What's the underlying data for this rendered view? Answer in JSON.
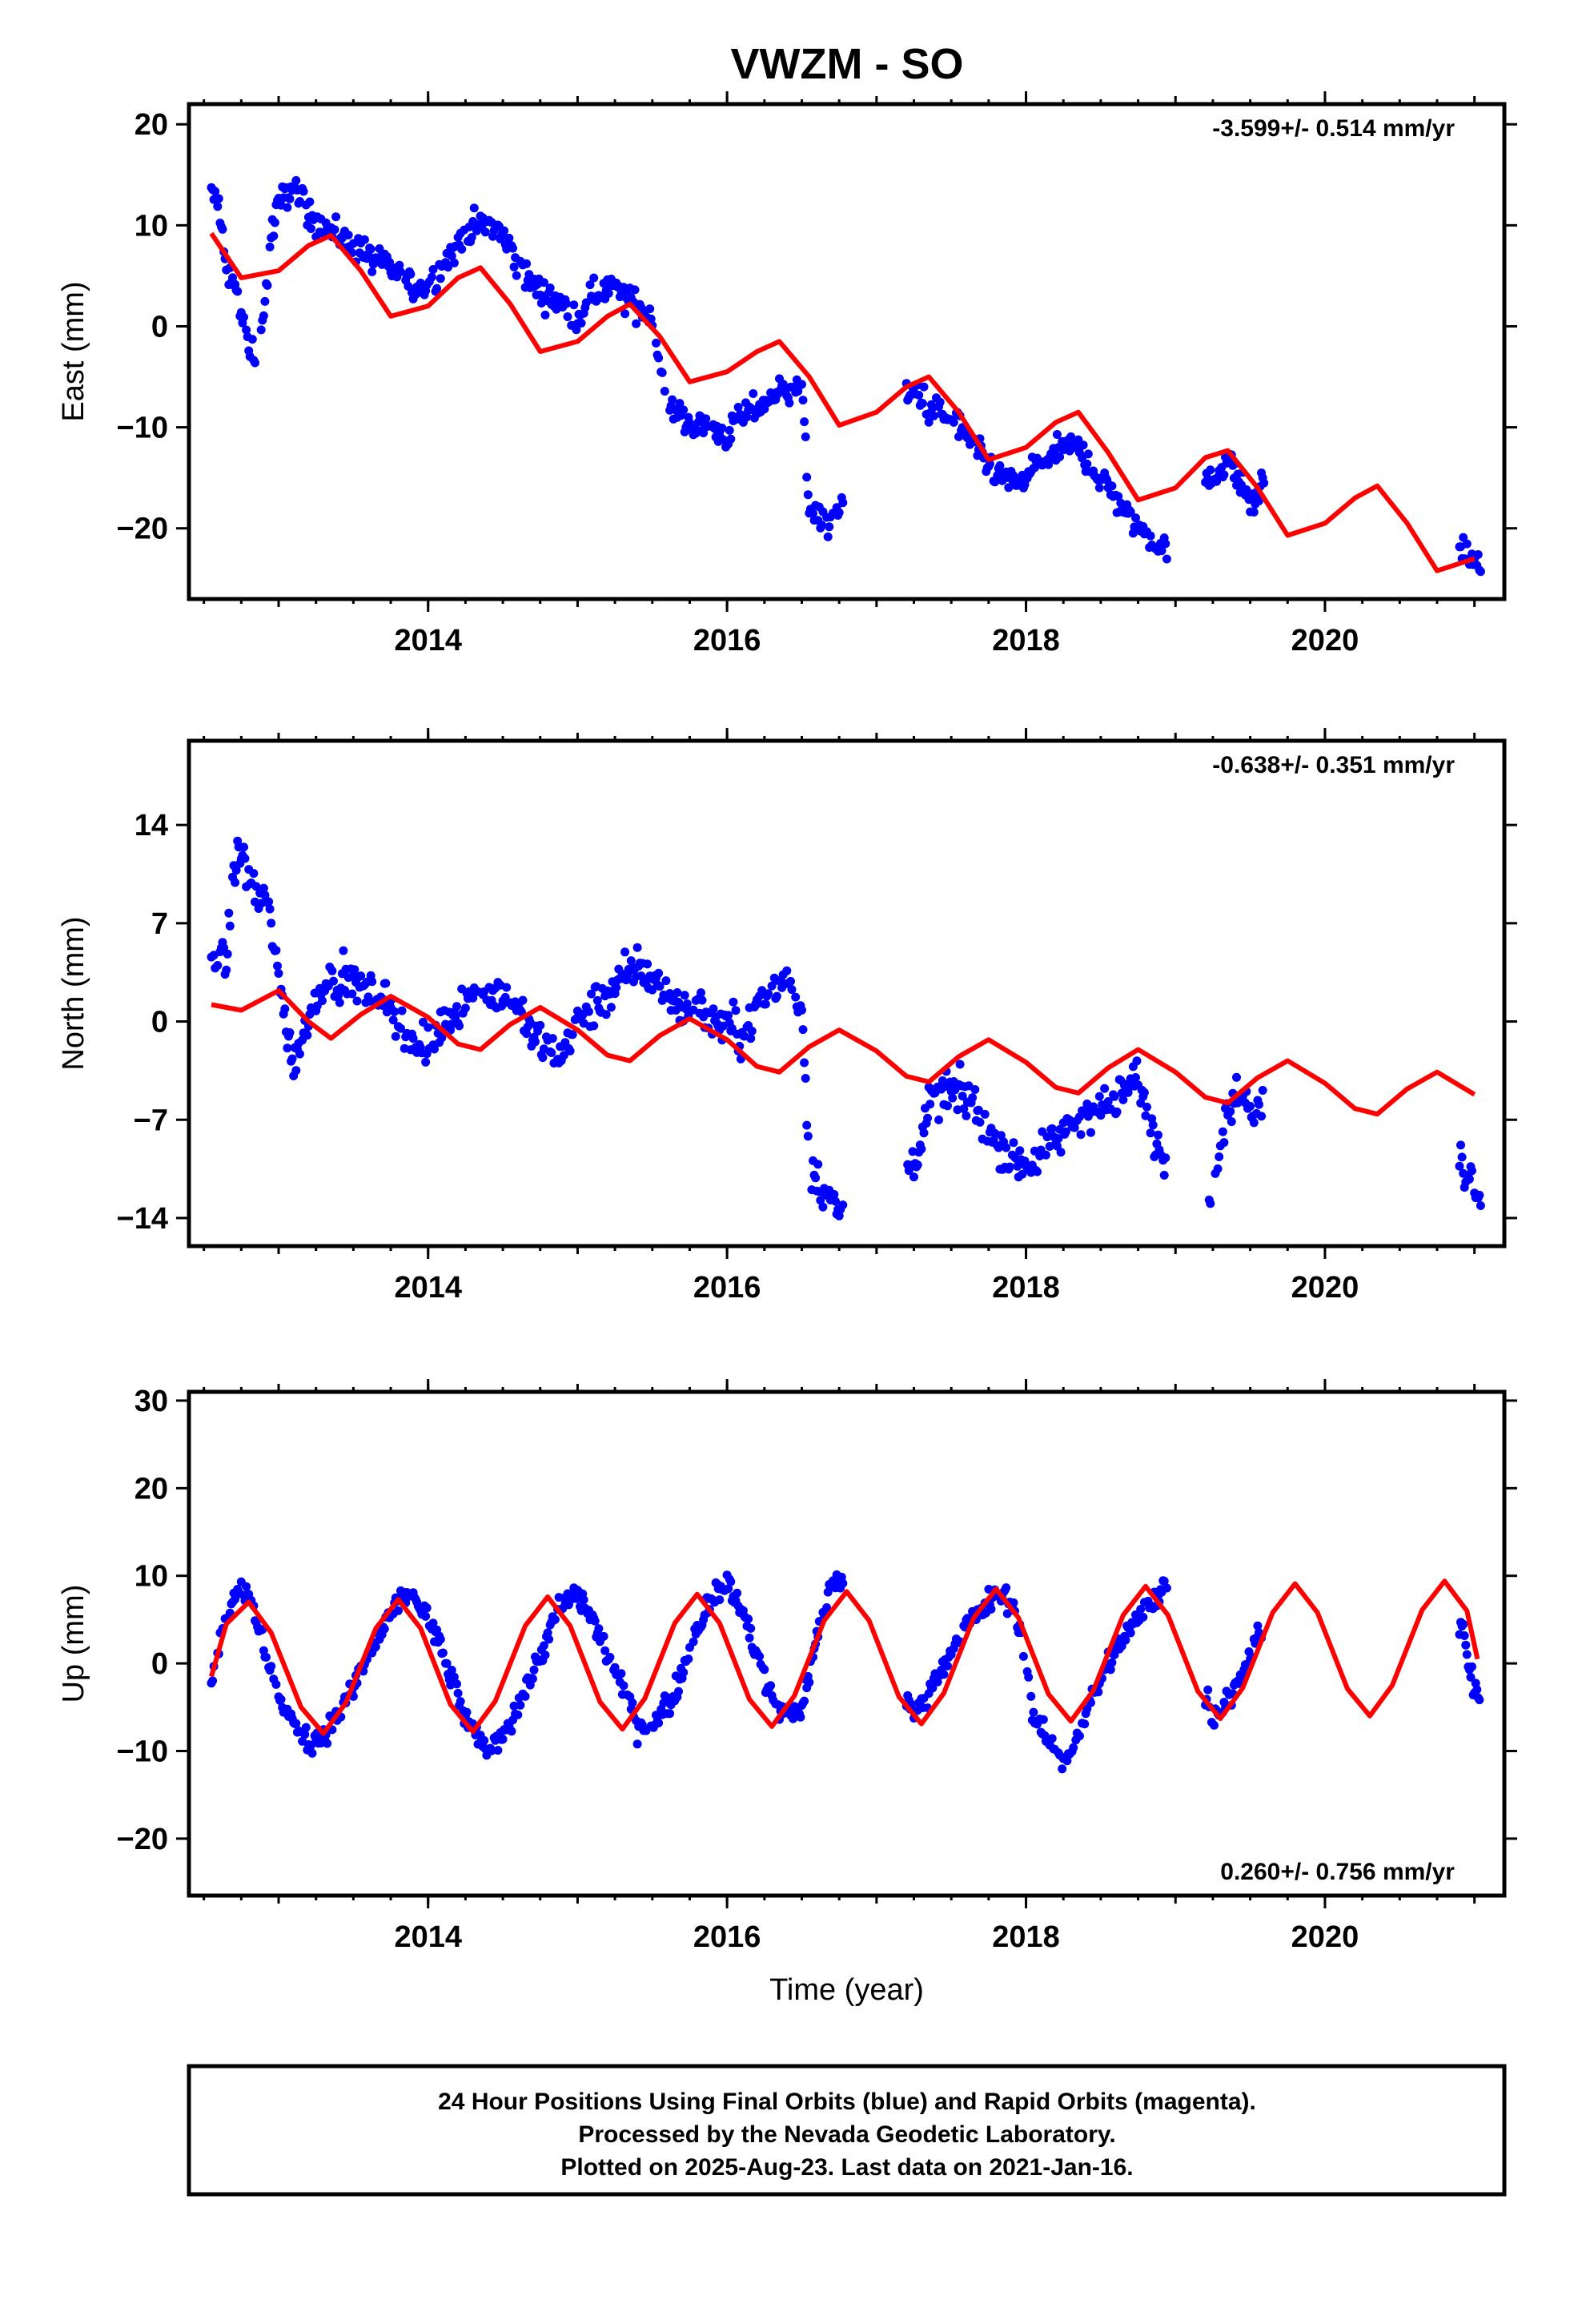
{
  "title": "VWZM - SO",
  "footer": {
    "line1": "24 Hour Positions Using Final Orbits (blue) and Rapid Orbits (magenta).",
    "line2": "Processed by the Nevada Geodetic Laboratory.",
    "line3": "Plotted on 2025-Aug-23. Last data on 2021-Jan-16."
  },
  "colors": {
    "data": "#0000ff",
    "model": "#ff0000",
    "axis": "#000000",
    "background": "#ffffff"
  },
  "chart_data": [
    {
      "type": "scatter",
      "component": "East",
      "ylabel": "East (mm)",
      "xlabel": "",
      "rate": "-3.599+/- 0.514 mm/yr",
      "rate_position": "top-right",
      "xlim": [
        2012.4,
        2021.2
      ],
      "ylim": [
        -27,
        22
      ],
      "xticks": [
        2014,
        2016,
        2018,
        2020
      ],
      "xtick_labels": [
        "2014",
        "2016",
        "2018",
        "2020"
      ],
      "yticks": [
        20,
        10,
        0,
        -10,
        -20
      ],
      "ytick_labels": [
        "20",
        "10",
        "0",
        "−10",
        "−20"
      ],
      "grid": false,
      "segments": [
        [
          2012.55,
          2013.05
        ],
        [
          2013.05,
          2015.6
        ],
        [
          2015.6,
          2016.5
        ],
        [
          2016.5,
          2016.78
        ],
        [
          2017.2,
          2018.8
        ],
        [
          2018.8,
          2018.95
        ],
        [
          2019.2,
          2019.6
        ],
        [
          2020.9,
          2021.05
        ]
      ],
      "series": [
        {
          "role": "data",
          "x": [
            2012.55,
            2012.6,
            2012.65,
            2012.7,
            2012.75,
            2012.8,
            2012.85,
            2012.9,
            2012.95,
            2013.0,
            2013.1,
            2013.2,
            2013.3,
            2013.4,
            2013.5,
            2013.6,
            2013.7,
            2013.8,
            2013.9,
            2014.0,
            2014.1,
            2014.2,
            2014.3,
            2014.4,
            2014.5,
            2014.6,
            2014.7,
            2014.8,
            2014.9,
            2015.0,
            2015.1,
            2015.2,
            2015.3,
            2015.4,
            2015.5,
            2015.6,
            2015.7,
            2015.8,
            2015.9,
            2016.0,
            2016.1,
            2016.2,
            2016.3,
            2016.4,
            2016.5,
            2016.55,
            2016.6,
            2016.65,
            2016.7,
            2016.75,
            2017.25,
            2017.35,
            2017.45,
            2017.55,
            2017.65,
            2017.75,
            2017.85,
            2017.95,
            2018.05,
            2018.15,
            2018.25,
            2018.35,
            2018.45,
            2018.55,
            2018.65,
            2018.75,
            2018.85,
            2018.93,
            2019.25,
            2019.35,
            2019.45,
            2019.52,
            2019.58,
            2020.92,
            2020.97,
            2021.02
          ],
          "values": [
            13,
            12,
            6,
            4,
            1,
            -2,
            -3,
            1,
            9,
            12,
            14,
            11,
            10,
            9,
            8,
            7,
            6,
            5,
            4,
            4,
            6,
            8,
            10,
            10,
            9,
            6,
            4,
            3,
            2,
            1,
            3,
            4,
            3,
            2,
            1,
            -8,
            -9,
            -10,
            -10,
            -11,
            -9,
            -8,
            -7,
            -6,
            -6,
            -18,
            -19,
            -20,
            -19,
            -18,
            -6,
            -8,
            -9,
            -10,
            -12,
            -14,
            -15,
            -16,
            -14,
            -13,
            -12,
            -12,
            -14,
            -16,
            -18,
            -20,
            -21,
            -22,
            -15,
            -13,
            -16,
            -18,
            -15,
            -22,
            -23,
            -24
          ]
        },
        {
          "role": "model",
          "x": [
            2012.55,
            2012.75,
            2013.0,
            2013.2,
            2013.35,
            2013.55,
            2013.75,
            2014.0,
            2014.2,
            2014.35,
            2014.55,
            2014.75,
            2015.0,
            2015.2,
            2015.35,
            2015.55,
            2015.75,
            2016.0,
            2016.2,
            2016.35,
            2016.55,
            2016.75,
            2017.0,
            2017.2,
            2017.35,
            2017.55,
            2017.75,
            2018.0,
            2018.2,
            2018.35,
            2018.55,
            2018.75,
            2019.0,
            2019.2,
            2019.35,
            2019.55,
            2019.75,
            2020.0,
            2020.2,
            2020.35,
            2020.55,
            2020.75,
            2021.0
          ],
          "values": [
            9.2,
            4.8,
            5.5,
            8.0,
            9.0,
            5.5,
            1.0,
            2.0,
            4.8,
            5.8,
            2.2,
            -2.5,
            -1.5,
            1.0,
            2.2,
            -1.0,
            -5.5,
            -4.5,
            -2.5,
            -1.5,
            -5.0,
            -9.8,
            -8.5,
            -6.0,
            -5.0,
            -8.5,
            -13.2,
            -12.0,
            -9.5,
            -8.5,
            -12.5,
            -17.2,
            -16.0,
            -13.0,
            -12.3,
            -16.0,
            -20.7,
            -19.5,
            -17.0,
            -15.8,
            -19.5,
            -24.2,
            -23.0
          ]
        }
      ]
    },
    {
      "type": "scatter",
      "component": "North",
      "ylabel": "North (mm)",
      "xlabel": "",
      "rate": "-0.638+/- 0.351 mm/yr",
      "rate_position": "top-right",
      "xlim": [
        2012.4,
        2021.2
      ],
      "ylim": [
        -16,
        20
      ],
      "xticks": [
        2014,
        2016,
        2018,
        2020
      ],
      "xtick_labels": [
        "2014",
        "2016",
        "2018",
        "2020"
      ],
      "yticks": [
        14,
        7,
        0,
        -7,
        -14
      ],
      "ytick_labels": [
        "14",
        "7",
        "0",
        "−7",
        "−14"
      ],
      "grid": false,
      "segments": [
        [
          2012.55,
          2013.05
        ],
        [
          2013.05,
          2015.6
        ],
        [
          2015.6,
          2016.5
        ],
        [
          2016.5,
          2016.78
        ],
        [
          2017.2,
          2018.8
        ],
        [
          2018.8,
          2018.95
        ],
        [
          2019.2,
          2019.6
        ],
        [
          2020.9,
          2021.05
        ]
      ],
      "series": [
        {
          "role": "data",
          "x": [
            2012.55,
            2012.6,
            2012.65,
            2012.7,
            2012.75,
            2012.8,
            2012.85,
            2012.9,
            2012.95,
            2013.0,
            2013.1,
            2013.2,
            2013.3,
            2013.4,
            2013.5,
            2013.6,
            2013.7,
            2013.8,
            2013.9,
            2014.0,
            2014.1,
            2014.2,
            2014.3,
            2014.4,
            2014.5,
            2014.6,
            2014.7,
            2014.8,
            2014.9,
            2015.0,
            2015.1,
            2015.2,
            2015.3,
            2015.4,
            2015.5,
            2015.6,
            2015.7,
            2015.8,
            2015.9,
            2016.0,
            2016.1,
            2016.2,
            2016.3,
            2016.4,
            2016.5,
            2016.55,
            2016.6,
            2016.65,
            2016.7,
            2016.75,
            2017.25,
            2017.35,
            2017.45,
            2017.55,
            2017.65,
            2017.75,
            2017.85,
            2017.95,
            2018.05,
            2018.15,
            2018.25,
            2018.35,
            2018.45,
            2018.55,
            2018.65,
            2018.75,
            2018.85,
            2018.93,
            2019.25,
            2019.35,
            2019.45,
            2019.52,
            2019.58,
            2020.92,
            2020.97,
            2021.02
          ],
          "values": [
            4,
            5,
            4,
            11,
            12,
            10,
            9,
            9,
            7,
            3,
            -3,
            0,
            3,
            3,
            3,
            2,
            2,
            0,
            -2,
            -2,
            0,
            1,
            2,
            2,
            2,
            1,
            -1,
            -2,
            -2,
            0,
            1,
            2,
            3,
            4,
            3,
            2,
            1,
            1,
            0,
            0,
            -1,
            1,
            2,
            3,
            1,
            -10,
            -11,
            -12,
            -13,
            -14,
            -10,
            -6,
            -5,
            -5,
            -6,
            -8,
            -9,
            -10,
            -10,
            -9,
            -8,
            -7,
            -6,
            -6,
            -5,
            -4,
            -8,
            -10,
            -12,
            -6,
            -5,
            -7,
            -6,
            -10,
            -11,
            -12
          ]
        },
        {
          "role": "model",
          "x": [
            2012.55,
            2012.75,
            2013.0,
            2013.2,
            2013.35,
            2013.55,
            2013.75,
            2014.0,
            2014.2,
            2014.35,
            2014.55,
            2014.75,
            2015.0,
            2015.2,
            2015.35,
            2015.55,
            2015.75,
            2016.0,
            2016.2,
            2016.35,
            2016.55,
            2016.75,
            2017.0,
            2017.2,
            2017.35,
            2017.55,
            2017.75,
            2018.0,
            2018.2,
            2018.35,
            2018.55,
            2018.75,
            2019.0,
            2019.2,
            2019.35,
            2019.55,
            2019.75,
            2020.0,
            2020.2,
            2020.35,
            2020.55,
            2020.75,
            2021.0
          ],
          "values": [
            1.2,
            0.8,
            2.2,
            0.0,
            -1.2,
            0.5,
            1.8,
            0.3,
            -1.6,
            -2.0,
            -0.2,
            1.0,
            -0.6,
            -2.4,
            -2.8,
            -1.0,
            0.2,
            -1.3,
            -3.2,
            -3.6,
            -1.8,
            -0.6,
            -2.1,
            -3.9,
            -4.3,
            -2.5,
            -1.3,
            -2.9,
            -4.7,
            -5.1,
            -3.3,
            -2.0,
            -3.6,
            -5.4,
            -5.8,
            -4.0,
            -2.8,
            -4.4,
            -6.2,
            -6.6,
            -4.8,
            -3.6,
            -5.2
          ]
        }
      ]
    },
    {
      "type": "scatter",
      "component": "Up",
      "ylabel": "Up (mm)",
      "xlabel": "Time (year)",
      "rate": "0.260+/- 0.756 mm/yr",
      "rate_position": "bottom-right",
      "xlim": [
        2012.4,
        2021.2
      ],
      "ylim": [
        -26.5,
        31
      ],
      "xticks": [
        2014,
        2016,
        2018,
        2020
      ],
      "xtick_labels": [
        "2014",
        "2016",
        "2018",
        "2020"
      ],
      "yticks": [
        30,
        20,
        10,
        0,
        -10,
        -20
      ],
      "ytick_labels": [
        "30",
        "20",
        "10",
        "0",
        "−10",
        "−20"
      ],
      "grid": false,
      "segments": [
        [
          2012.55,
          2013.05
        ],
        [
          2013.05,
          2015.6
        ],
        [
          2015.6,
          2016.5
        ],
        [
          2016.5,
          2016.78
        ],
        [
          2017.2,
          2018.8
        ],
        [
          2018.8,
          2018.95
        ],
        [
          2019.2,
          2019.6
        ],
        [
          2020.9,
          2021.05
        ]
      ],
      "series": [
        {
          "role": "data",
          "x": [
            2012.55,
            2012.6,
            2012.65,
            2012.7,
            2012.75,
            2012.8,
            2012.85,
            2012.9,
            2012.95,
            2013.0,
            2013.1,
            2013.2,
            2013.3,
            2013.4,
            2013.5,
            2013.6,
            2013.7,
            2013.8,
            2013.9,
            2014.0,
            2014.1,
            2014.2,
            2014.3,
            2014.4,
            2014.5,
            2014.6,
            2014.7,
            2014.8,
            2014.9,
            2015.0,
            2015.1,
            2015.2,
            2015.3,
            2015.4,
            2015.5,
            2015.6,
            2015.7,
            2015.8,
            2015.9,
            2016.0,
            2016.1,
            2016.2,
            2016.3,
            2016.4,
            2016.5,
            2016.55,
            2016.6,
            2016.65,
            2016.7,
            2016.75,
            2017.25,
            2017.35,
            2017.45,
            2017.55,
            2017.65,
            2017.75,
            2017.85,
            2017.95,
            2018.05,
            2018.15,
            2018.25,
            2018.35,
            2018.45,
            2018.55,
            2018.65,
            2018.75,
            2018.85,
            2018.93,
            2019.25,
            2019.35,
            2019.45,
            2019.52,
            2019.58,
            2020.92,
            2020.97,
            2021.02
          ],
          "values": [
            -2,
            2,
            5,
            8,
            9,
            7,
            5,
            2,
            -1,
            -4,
            -7,
            -9,
            -8,
            -6,
            -3,
            1,
            4,
            7,
            8,
            5,
            1,
            -4,
            -8,
            -10,
            -8,
            -5,
            -1,
            3,
            7,
            8,
            5,
            1,
            -3,
            -7,
            -7,
            -5,
            -1,
            4,
            8,
            9,
            6,
            1,
            -4,
            -6,
            -5,
            -1,
            3,
            6,
            9,
            10,
            -6,
            -3,
            0,
            3,
            5,
            7,
            8,
            5,
            -6,
            -9,
            -11,
            -8,
            -4,
            0,
            3,
            5,
            7,
            9,
            -6,
            -4,
            -1,
            2,
            4,
            4,
            0,
            -4
          ]
        },
        {
          "role": "model",
          "x": [
            2012.55,
            2012.65,
            2012.8,
            2012.95,
            2013.15,
            2013.3,
            2013.45,
            2013.65,
            2013.8,
            2013.95,
            2014.15,
            2014.3,
            2014.45,
            2014.65,
            2014.8,
            2014.95,
            2015.15,
            2015.3,
            2015.45,
            2015.65,
            2015.8,
            2015.95,
            2016.15,
            2016.3,
            2016.45,
            2016.65,
            2016.8,
            2016.95,
            2017.15,
            2017.3,
            2017.45,
            2017.65,
            2017.8,
            2017.95,
            2018.15,
            2018.3,
            2018.45,
            2018.65,
            2018.8,
            2018.95,
            2019.15,
            2019.3,
            2019.45,
            2019.65,
            2019.8,
            2019.95,
            2020.15,
            2020.3,
            2020.45,
            2020.65,
            2020.8,
            2020.95,
            2021.02
          ],
          "values": [
            -1.5,
            4.5,
            7.0,
            3.5,
            -5.0,
            -8.0,
            -4.5,
            4.0,
            7.3,
            4.0,
            -4.7,
            -7.8,
            -4.3,
            4.3,
            7.6,
            4.3,
            -4.4,
            -7.5,
            -4.0,
            4.6,
            7.9,
            4.6,
            -4.1,
            -7.2,
            -3.7,
            4.9,
            8.2,
            4.9,
            -3.8,
            -6.9,
            -3.4,
            5.2,
            8.5,
            5.2,
            -3.5,
            -6.6,
            -3.1,
            5.5,
            8.8,
            5.5,
            -3.2,
            -6.3,
            -2.8,
            5.8,
            9.1,
            5.8,
            -2.9,
            -6.0,
            -2.5,
            6.1,
            9.4,
            6.0,
            0.5
          ]
        }
      ]
    }
  ]
}
